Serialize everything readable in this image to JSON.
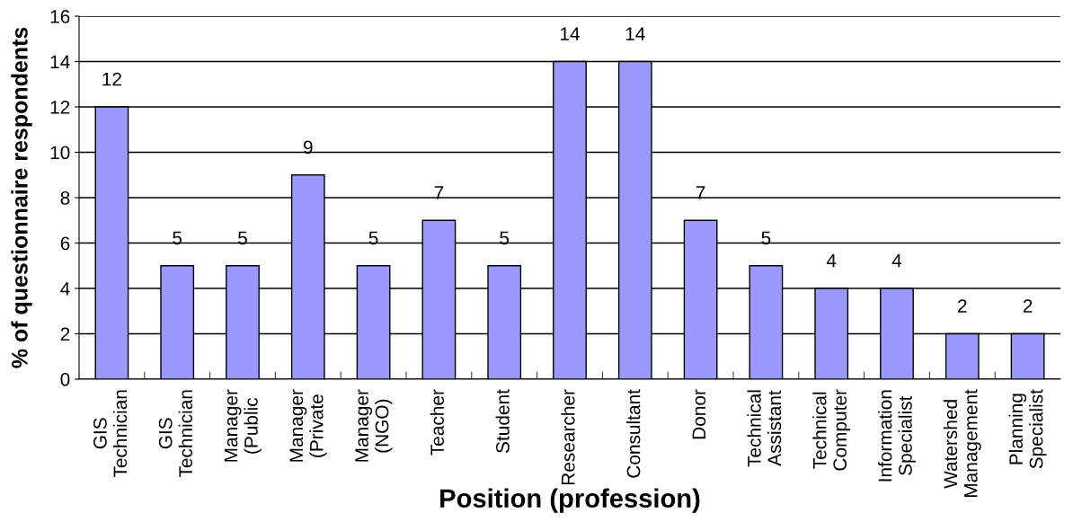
{
  "chart_data": {
    "type": "bar",
    "xlabel": "Position (profession)",
    "ylabel": "% of questionnaire respondents",
    "categories": [
      "GIS\nTechnician",
      "GIS\nTechnician",
      "Manager\n(Public",
      "Manager\n(Private",
      "Manager\n(NGO)",
      "Teacher",
      "Student",
      "Researcher",
      "Consultant",
      "Donor",
      "Technical\nAssistant",
      "Technical\nComputer",
      "Information\nSpecialist",
      "Watershed\nManagement",
      "Planning\nSpecialist"
    ],
    "values": [
      12,
      5,
      5,
      9,
      5,
      7,
      5,
      14,
      14,
      7,
      5,
      4,
      4,
      2,
      2
    ],
    "color": "#9999ff",
    "ylim": [
      0,
      16
    ],
    "yticks": [
      0,
      2,
      4,
      6,
      8,
      10,
      12,
      14,
      16
    ],
    "grid": "y",
    "data_labels": true,
    "legend": false
  }
}
